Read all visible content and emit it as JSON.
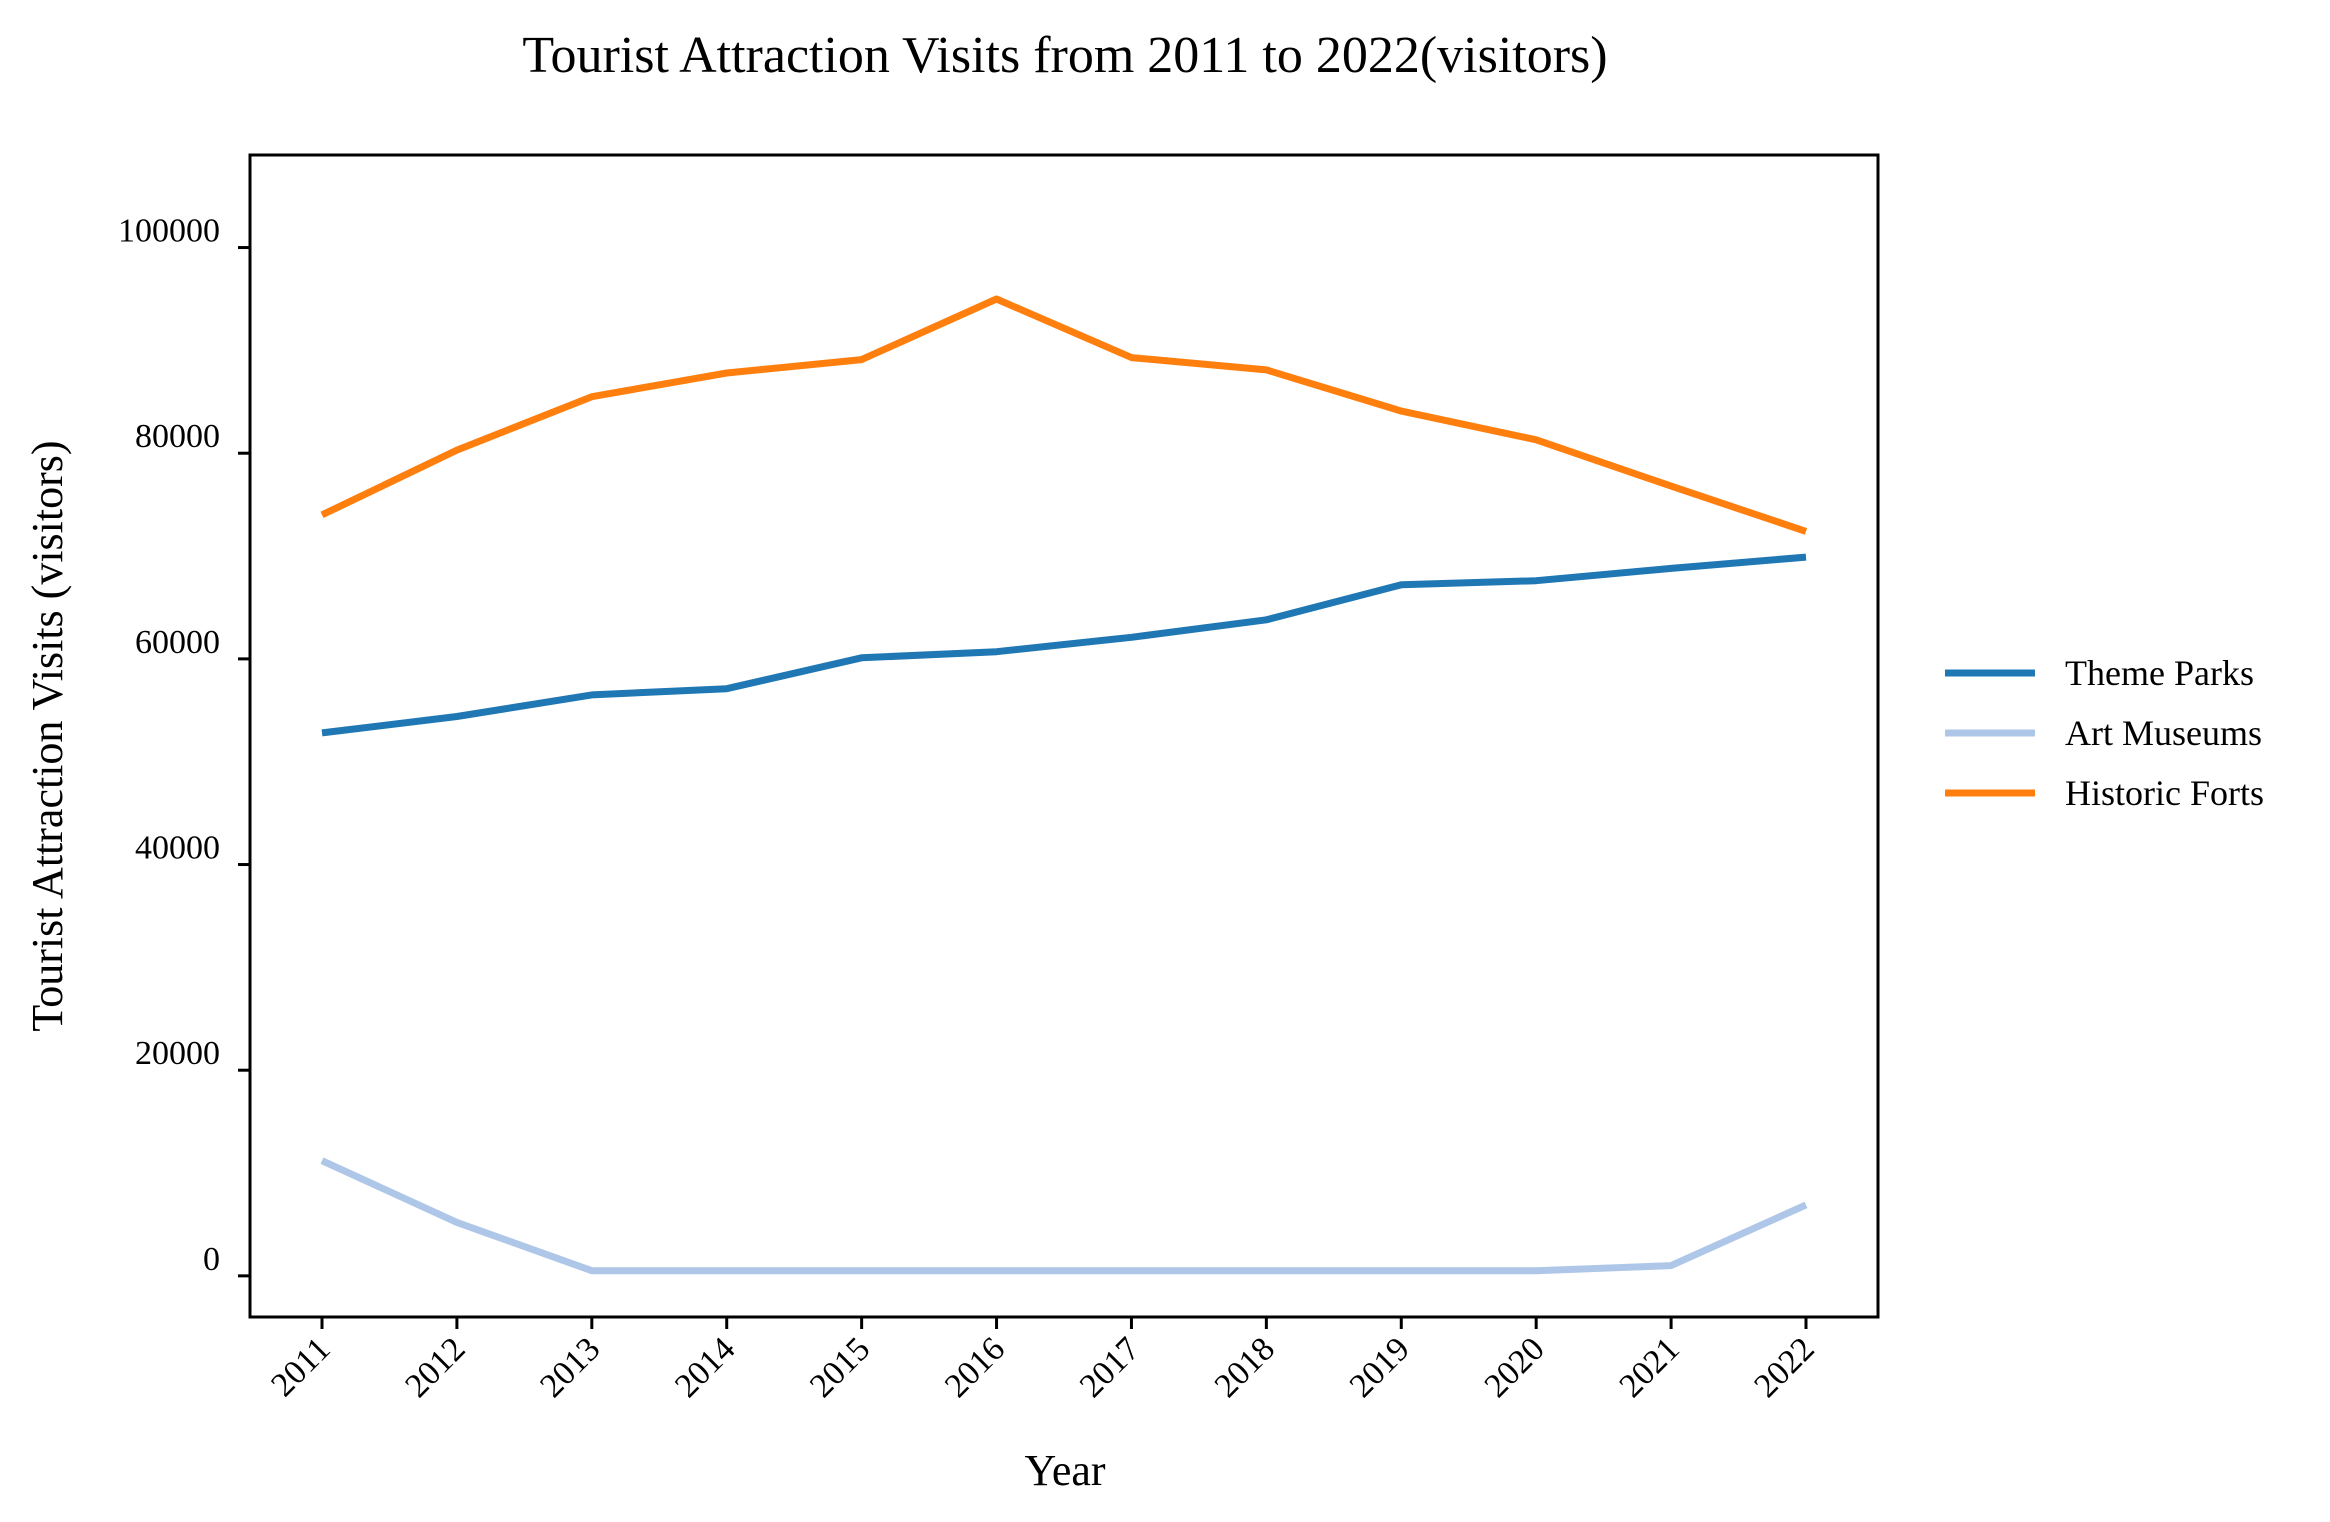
{
  "chart_data": {
    "type": "line",
    "title": "Tourist Attraction Visits from 2011 to 2022(visitors)",
    "xlabel": "Year",
    "ylabel": "Tourist Attraction Visits (visitors)",
    "categories": [
      "2011",
      "2012",
      "2013",
      "2014",
      "2015",
      "2016",
      "2017",
      "2018",
      "2019",
      "2020",
      "2021",
      "2022"
    ],
    "ylim": [
      -4000,
      109000
    ],
    "yticks": [
      0,
      20000,
      40000,
      60000,
      80000,
      100000
    ],
    "ytick_labels": [
      "0",
      "20000",
      "40000",
      "60000",
      "80000",
      "100000"
    ],
    "grid": false,
    "legend_position": "right",
    "series": [
      {
        "name": "Theme Parks",
        "color": "#1f77b4",
        "values": [
          52800,
          54400,
          56500,
          57100,
          60100,
          60700,
          62100,
          63800,
          67200,
          67600,
          68800,
          69900
        ]
      },
      {
        "name": "Art Museums",
        "color": "#aec7e8",
        "values": [
          11200,
          5200,
          500,
          500,
          500,
          500,
          500,
          500,
          500,
          500,
          1000,
          6900
        ]
      },
      {
        "name": "Historic Forts",
        "color": "#ff7f0e",
        "values": [
          74000,
          80300,
          85500,
          87800,
          89100,
          95000,
          89300,
          88100,
          84100,
          81300,
          76800,
          72400
        ]
      }
    ]
  }
}
